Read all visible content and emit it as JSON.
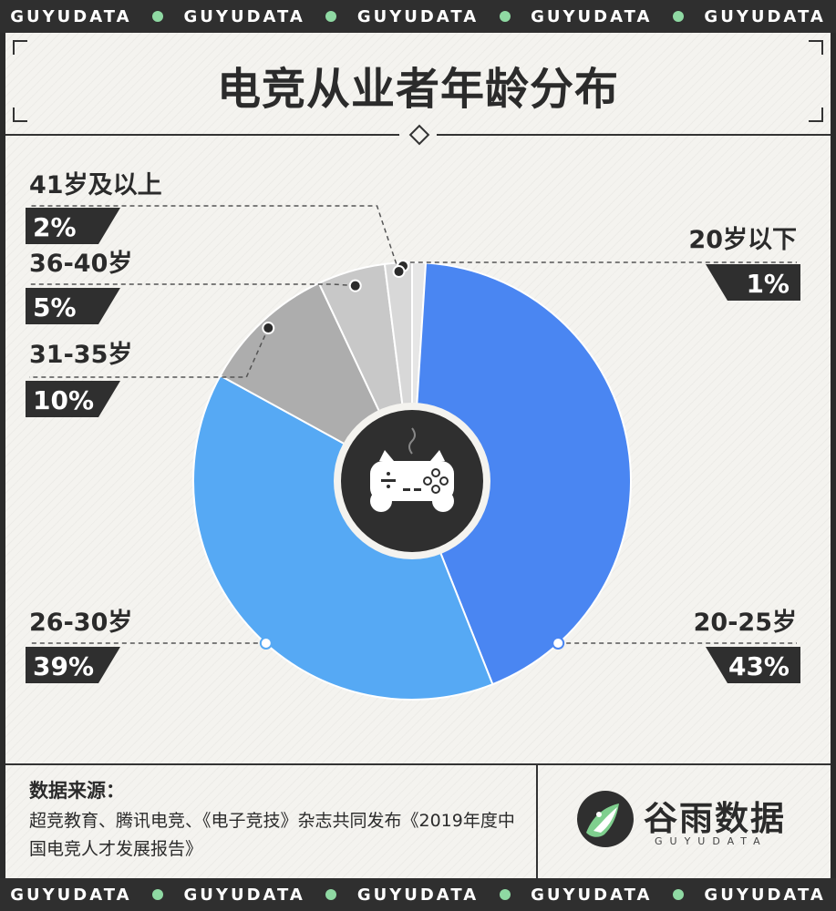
{
  "brand_band": {
    "word": "GUYUDATA",
    "dot_color": "#8fd9a3"
  },
  "title": "电竞从业者年龄分布",
  "chart_data": {
    "type": "pie",
    "style": "donut",
    "center_icon": "gamepad-icon",
    "slices": [
      {
        "label": "20岁以下",
        "value": 1,
        "value_label": "1%",
        "color": "#e6e6e6"
      },
      {
        "label": "20-25岁",
        "value": 43,
        "value_label": "43%",
        "color": "#4a86f2"
      },
      {
        "label": "26-30岁",
        "value": 39,
        "value_label": "39%",
        "color": "#56a9f4"
      },
      {
        "label": "31-35岁",
        "value": 10,
        "value_label": "10%",
        "color": "#adadad"
      },
      {
        "label": "36-40岁",
        "value": 5,
        "value_label": "5%",
        "color": "#c8c8c8"
      },
      {
        "label": "41岁及以上",
        "value": 2,
        "value_label": "2%",
        "color": "#d8d8d8"
      }
    ]
  },
  "footer": {
    "source_heading": "数据来源：",
    "source_text": "超竞教育、腾讯电竞、《电子竞技》杂志共同发布《2019年度中国电竞人才发展报告》",
    "logo_name": "谷雨数据",
    "logo_sub": "GUYUDATA",
    "logo_colors": {
      "dark": "#2f2f2f",
      "green": "#7fcf8e"
    }
  }
}
